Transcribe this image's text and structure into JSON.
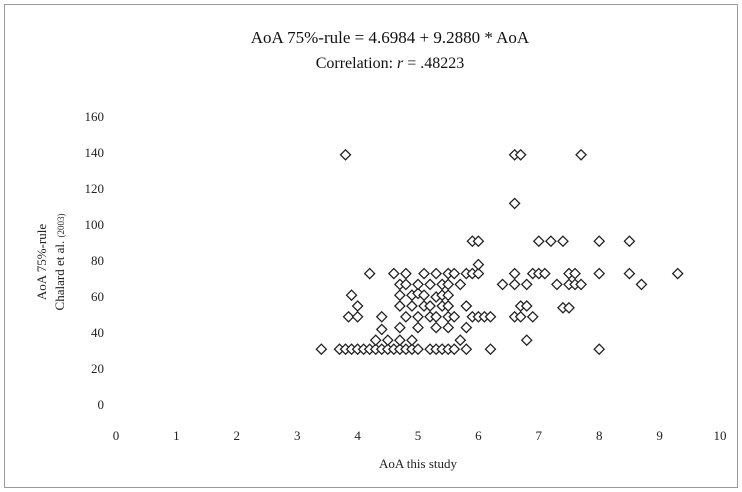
{
  "chart_data": {
    "type": "scatter",
    "title_main": "AoA 75%-rule = 4.6984 + 9.2880 * AoA",
    "title_sub_prefix": "Correlation: ",
    "title_sub_r": "r",
    "title_sub_suffix": " = .48223",
    "xlabel": "AoA this study",
    "ylabel_line1": "AoA 75%-rule",
    "ylabel_line2_main": "Chalard et al. ",
    "ylabel_line2_small": "(2003)",
    "xlim": [
      0,
      10
    ],
    "ylim": [
      0,
      160
    ],
    "x_ticks": [
      "0",
      "1",
      "2",
      "3",
      "4",
      "5",
      "6",
      "7",
      "8",
      "9",
      "10"
    ],
    "y_ticks": [
      "0",
      "20",
      "40",
      "60",
      "80",
      "100",
      "120",
      "140",
      "160"
    ],
    "marker": "open-diamond",
    "marker_color": "#222222",
    "points": [
      [
        3.4,
        31
      ],
      [
        3.7,
        31
      ],
      [
        3.8,
        31
      ],
      [
        3.9,
        31
      ],
      [
        4.0,
        31
      ],
      [
        4.1,
        31
      ],
      [
        4.2,
        31
      ],
      [
        4.3,
        31
      ],
      [
        4.4,
        31
      ],
      [
        4.5,
        31
      ],
      [
        4.6,
        31
      ],
      [
        4.7,
        31
      ],
      [
        4.8,
        31
      ],
      [
        4.9,
        31
      ],
      [
        5.0,
        31
      ],
      [
        5.2,
        31
      ],
      [
        5.3,
        31
      ],
      [
        5.4,
        31
      ],
      [
        5.5,
        31
      ],
      [
        5.6,
        31
      ],
      [
        5.8,
        31
      ],
      [
        6.2,
        31
      ],
      [
        8.0,
        31
      ],
      [
        4.3,
        36
      ],
      [
        4.5,
        36
      ],
      [
        4.7,
        36
      ],
      [
        4.9,
        36
      ],
      [
        5.7,
        36
      ],
      [
        6.8,
        36
      ],
      [
        4.4,
        42
      ],
      [
        4.7,
        43
      ],
      [
        5.0,
        43
      ],
      [
        5.3,
        43
      ],
      [
        5.5,
        43
      ],
      [
        5.8,
        43
      ],
      [
        4.4,
        49
      ],
      [
        4.8,
        49
      ],
      [
        5.0,
        49
      ],
      [
        5.2,
        49
      ],
      [
        5.3,
        49
      ],
      [
        5.5,
        49
      ],
      [
        5.6,
        49
      ],
      [
        5.9,
        49
      ],
      [
        6.0,
        49
      ],
      [
        6.1,
        49
      ],
      [
        6.2,
        49
      ],
      [
        6.6,
        49
      ],
      [
        6.7,
        49
      ],
      [
        6.9,
        49
      ],
      [
        3.85,
        49
      ],
      [
        4.0,
        49
      ],
      [
        4.7,
        55
      ],
      [
        4.9,
        55
      ],
      [
        5.1,
        55
      ],
      [
        5.2,
        55
      ],
      [
        5.4,
        55
      ],
      [
        5.5,
        55
      ],
      [
        5.8,
        55
      ],
      [
        6.7,
        55
      ],
      [
        6.8,
        55
      ],
      [
        7.4,
        54
      ],
      [
        7.5,
        54
      ],
      [
        4.0,
        55
      ],
      [
        3.9,
        61
      ],
      [
        4.7,
        61
      ],
      [
        4.9,
        61
      ],
      [
        5.0,
        62
      ],
      [
        5.1,
        61
      ],
      [
        5.3,
        60
      ],
      [
        5.4,
        61
      ],
      [
        5.5,
        61
      ],
      [
        4.7,
        67
      ],
      [
        4.8,
        67
      ],
      [
        5.0,
        67
      ],
      [
        5.2,
        67
      ],
      [
        5.4,
        67
      ],
      [
        5.5,
        67
      ],
      [
        5.7,
        67
      ],
      [
        6.4,
        67
      ],
      [
        6.6,
        67
      ],
      [
        6.8,
        67
      ],
      [
        7.3,
        67
      ],
      [
        7.5,
        67
      ],
      [
        7.6,
        67
      ],
      [
        7.7,
        67
      ],
      [
        8.7,
        67
      ],
      [
        4.2,
        73
      ],
      [
        4.6,
        73
      ],
      [
        4.8,
        73
      ],
      [
        5.1,
        73
      ],
      [
        5.3,
        73
      ],
      [
        5.5,
        73
      ],
      [
        5.6,
        73
      ],
      [
        5.8,
        73
      ],
      [
        5.9,
        73
      ],
      [
        6.0,
        73
      ],
      [
        6.6,
        73
      ],
      [
        6.9,
        73
      ],
      [
        7.0,
        73
      ],
      [
        7.1,
        73
      ],
      [
        7.5,
        73
      ],
      [
        7.6,
        73
      ],
      [
        8.0,
        73
      ],
      [
        8.5,
        73
      ],
      [
        9.3,
        73
      ],
      [
        6.0,
        78
      ],
      [
        5.9,
        91
      ],
      [
        6.0,
        91
      ],
      [
        7.0,
        91
      ],
      [
        7.2,
        91
      ],
      [
        7.4,
        91
      ],
      [
        8.0,
        91
      ],
      [
        8.5,
        91
      ],
      [
        6.6,
        112
      ],
      [
        3.8,
        139
      ],
      [
        6.6,
        139
      ],
      [
        6.7,
        139
      ],
      [
        7.7,
        139
      ]
    ]
  }
}
